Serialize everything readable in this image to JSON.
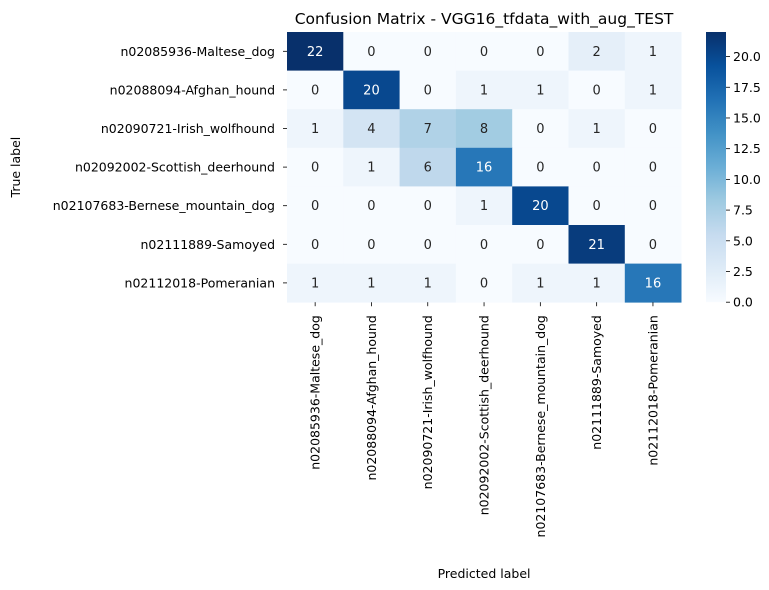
{
  "chart_data": {
    "type": "heatmap",
    "title": "Confusion Matrix - VGG16_tfdata_with_aug_TEST",
    "xlabel": "Predicted label",
    "ylabel": "True label",
    "row_labels": [
      "n02085936-Maltese_dog",
      "n02088094-Afghan_hound",
      "n02090721-Irish_wolfhound",
      "n02092002-Scottish_deerhound",
      "n02107683-Bernese_mountain_dog",
      "n02111889-Samoyed",
      "n02112018-Pomeranian"
    ],
    "col_labels": [
      "n02085936-Maltese_dog",
      "n02088094-Afghan_hound",
      "n02090721-Irish_wolfhound",
      "n02092002-Scottish_deerhound",
      "n02107683-Bernese_mountain_dog",
      "n02111889-Samoyed",
      "n02112018-Pomeranian"
    ],
    "matrix": [
      [
        22,
        0,
        0,
        0,
        0,
        2,
        1
      ],
      [
        0,
        20,
        0,
        1,
        1,
        0,
        1
      ],
      [
        1,
        4,
        7,
        8,
        0,
        1,
        0
      ],
      [
        0,
        1,
        6,
        16,
        0,
        0,
        0
      ],
      [
        0,
        0,
        0,
        1,
        20,
        0,
        0
      ],
      [
        0,
        0,
        0,
        0,
        0,
        21,
        0
      ],
      [
        1,
        1,
        1,
        0,
        1,
        1,
        16
      ]
    ],
    "colormap": "Blues",
    "value_range": [
      0,
      22
    ],
    "colorbar_ticks": [
      "0.0",
      "2.5",
      "5.0",
      "7.5",
      "10.0",
      "12.5",
      "15.0",
      "17.5",
      "20.0"
    ]
  }
}
